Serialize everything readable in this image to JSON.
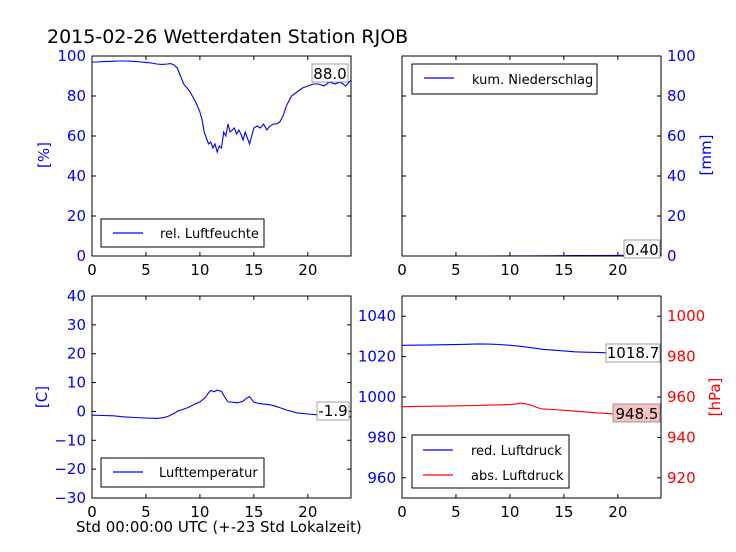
{
  "title": "2015-02-26 Wetterdaten Station RJOB",
  "xlabel": "Std 00:00:00 UTC (+-23 Std Lokalzeit)",
  "colors": {
    "blue": "#0000ff",
    "red": "#ff0000",
    "anno_bg_red": "#f4c2c2"
  },
  "chart_data": [
    {
      "type": "line",
      "xlim": [
        0,
        24
      ],
      "ylim": [
        0,
        100
      ],
      "x_ticks": [
        "0",
        "5",
        "10",
        "15",
        "20"
      ],
      "y_ticks": [
        "0",
        "20",
        "40",
        "60",
        "80",
        "100"
      ],
      "ylabel": "[%]",
      "ylabel_side": "left",
      "legend_location": "lower center",
      "annotation": "88.0",
      "series": [
        {
          "name": "rel. Luftfeuchte",
          "color": "#0000ff",
          "axis": "left",
          "x": [
            0,
            0.5,
            1,
            1.5,
            2,
            2.5,
            3,
            3.5,
            4,
            4.5,
            5,
            5.5,
            6,
            6.5,
            7,
            7.3,
            7.6,
            7.9,
            8.2,
            8.5,
            8.8,
            9.1,
            9.4,
            9.7,
            10,
            10.2,
            10.4,
            10.6,
            10.8,
            11,
            11.2,
            11.4,
            11.6,
            11.8,
            12,
            12.2,
            12.4,
            12.6,
            12.8,
            13,
            13.2,
            13.4,
            13.6,
            13.8,
            14,
            14.2,
            14.4,
            14.6,
            14.8,
            15,
            15.3,
            15.6,
            15.9,
            16.2,
            16.5,
            16.8,
            17.1,
            17.4,
            17.7,
            18,
            18.5,
            19,
            19.5,
            20,
            20.5,
            21,
            21.5,
            22,
            22.5,
            23,
            23.5,
            24
          ],
          "values": [
            97,
            97,
            97.2,
            97.3,
            97.4,
            97.5,
            97.5,
            97.4,
            97.3,
            97,
            96.8,
            96.5,
            96,
            95.8,
            96,
            96.2,
            95.5,
            94,
            90,
            86,
            84,
            82,
            79,
            76,
            72,
            68,
            62,
            59,
            56,
            57,
            54,
            56,
            52,
            55,
            54,
            62,
            60,
            66,
            62,
            63,
            64,
            61,
            63,
            61,
            58,
            62,
            59,
            56,
            60,
            64,
            65,
            64,
            66,
            63,
            65,
            66,
            66,
            67,
            70,
            75,
            80,
            82,
            84,
            85,
            86,
            86,
            85,
            87,
            86,
            87,
            85,
            88
          ]
        }
      ]
    },
    {
      "type": "line",
      "xlim": [
        0,
        24
      ],
      "ylim": [
        0,
        100
      ],
      "x_ticks": [
        "0",
        "5",
        "10",
        "15",
        "20"
      ],
      "y_ticks": [
        "0",
        "20",
        "40",
        "60",
        "80",
        "100"
      ],
      "ylabel": "[mm]",
      "ylabel_side": "right",
      "legend_location": "upper left",
      "annotation": "0.40",
      "series": [
        {
          "name": "kum. Niederschlag",
          "color": "#0000ff",
          "axis": "right",
          "x": [
            0,
            4,
            8,
            12,
            14,
            16,
            18,
            20,
            22,
            24
          ],
          "values": [
            0,
            0,
            0,
            0.05,
            0.1,
            0.2,
            0.25,
            0.3,
            0.35,
            0.4
          ]
        }
      ]
    },
    {
      "type": "line",
      "xlim": [
        0,
        24
      ],
      "ylim": [
        -30,
        40
      ],
      "x_ticks": [
        "0",
        "5",
        "10",
        "15",
        "20"
      ],
      "y_ticks": [
        "−30",
        "−20",
        "−10",
        "0",
        "10",
        "20",
        "30",
        "40"
      ],
      "ylabel": "[C]",
      "ylabel_side": "left",
      "legend_location": "lower center",
      "annotation": "-1.9",
      "series": [
        {
          "name": "Lufttemperatur",
          "color": "#0000ff",
          "axis": "left",
          "x": [
            0,
            1,
            2,
            3,
            4,
            5,
            6,
            6.5,
            7,
            7.5,
            8,
            8.5,
            9,
            9.5,
            10,
            10.5,
            10.8,
            11,
            11.3,
            11.6,
            12,
            12.3,
            12.6,
            13,
            13.5,
            14,
            14.3,
            14.6,
            15,
            15.5,
            16,
            16.5,
            17,
            17.5,
            18,
            18.5,
            19,
            20,
            21,
            22,
            23,
            24
          ],
          "values": [
            -1.3,
            -1.4,
            -1.5,
            -1.9,
            -2.1,
            -2.3,
            -2.4,
            -2.2,
            -1.8,
            -0.9,
            0.2,
            0.8,
            1.5,
            2.5,
            3.3,
            4.8,
            6.5,
            7.3,
            6.8,
            7.4,
            6.9,
            5,
            3.3,
            3.2,
            3,
            3.5,
            4.6,
            5.1,
            3.2,
            2.7,
            2.5,
            2.3,
            1.8,
            1.2,
            0.5,
            0,
            -0.5,
            -0.9,
            -1.2,
            -1.3,
            -1.6,
            -1.9
          ]
        }
      ]
    },
    {
      "type": "line",
      "xlim": [
        0,
        24
      ],
      "ylim": [
        950,
        1050
      ],
      "x_ticks": [
        "0",
        "5",
        "10",
        "15",
        "20"
      ],
      "y_ticks": [
        "960",
        "980",
        "1000",
        "1020",
        "1040"
      ],
      "y2lim": [
        910,
        1010
      ],
      "y2_ticks": [
        "920",
        "940",
        "960",
        "980",
        "1000"
      ],
      "y2label": "[hPa]",
      "legend_location": "lower left",
      "annotations": [
        "1018.7",
        "948.5"
      ],
      "series": [
        {
          "name": "red. Luftdruck",
          "color": "#0000ff",
          "axis": "left",
          "x": [
            0,
            2,
            4,
            6,
            7,
            8,
            9,
            10,
            11,
            12,
            13,
            14,
            15,
            16,
            17,
            18,
            19,
            20,
            21,
            22,
            23,
            24
          ],
          "values": [
            1025.6,
            1025.7,
            1025.9,
            1026.1,
            1026.3,
            1026.2,
            1026,
            1025.6,
            1025.1,
            1024.4,
            1023.6,
            1023.2,
            1022.8,
            1022.4,
            1022.2,
            1022.1,
            1021.9,
            1021.2,
            1020.4,
            1019.6,
            1019.1,
            1018.7
          ]
        },
        {
          "name": "abs. Luftdruck",
          "color": "#ff0000",
          "axis": "right",
          "x": [
            0,
            2,
            4,
            6,
            7,
            8,
            9,
            10,
            10.5,
            11,
            11.5,
            12,
            12.5,
            13,
            14,
            15,
            16,
            17,
            18,
            19,
            20,
            21,
            22,
            23,
            24
          ],
          "values": [
            955.2,
            955.4,
            955.5,
            955.7,
            955.8,
            956,
            956.1,
            956.3,
            956.5,
            957,
            956.6,
            955.9,
            954.8,
            954.1,
            953.8,
            953.4,
            953,
            952.6,
            952.2,
            951.9,
            951.4,
            950.8,
            950,
            949.2,
            948.5
          ]
        }
      ]
    }
  ]
}
